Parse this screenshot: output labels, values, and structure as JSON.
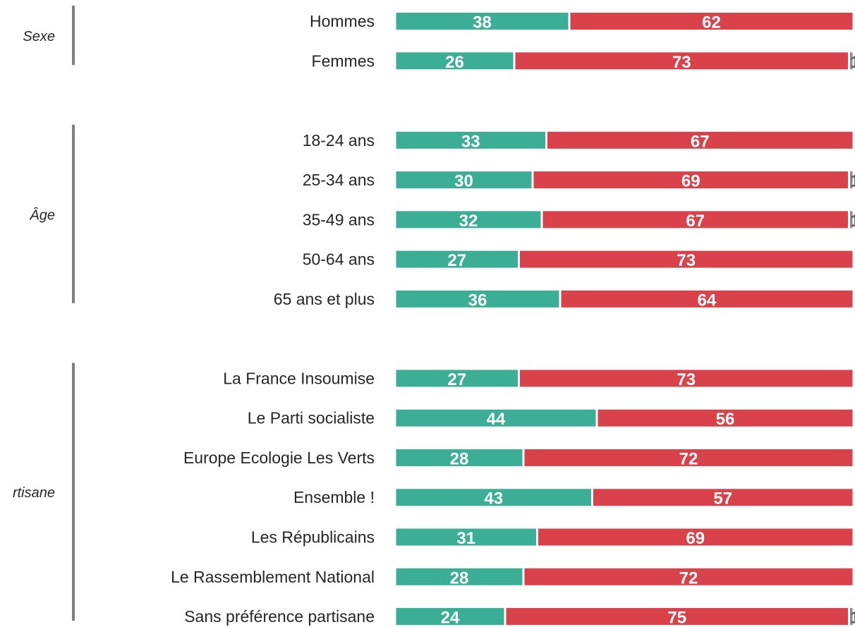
{
  "chart_data": {
    "type": "stacked-bar-horizontal",
    "groups": [
      {
        "label": "Sexe",
        "categories": [
          "Hommes",
          "Femmes"
        ]
      },
      {
        "label": "Âge",
        "categories": [
          "18-24 ans",
          "25-34 ans",
          "35-49 ans",
          "50-64 ans",
          "65 ans et plus"
        ]
      },
      {
        "label": "rtisane",
        "categories": [
          "La France Insoumise",
          "Le Parti socialiste",
          "Europe Ecologie Les Verts",
          "Ensemble !",
          "Les Républicains",
          "Le Rassemblement National",
          "Sans préférence partisane"
        ]
      }
    ],
    "xlim": [
      0,
      100
    ],
    "series": [
      {
        "color": "#3dae96",
        "values": [
          38,
          26,
          33,
          30,
          32,
          27,
          36,
          27,
          44,
          28,
          43,
          31,
          28,
          24
        ]
      },
      {
        "color": "#d9424b",
        "values": [
          62,
          73,
          67,
          69,
          67,
          73,
          64,
          73,
          56,
          72,
          57,
          69,
          72,
          75
        ]
      },
      {
        "color": "#8c8c8c",
        "values": [
          0,
          1,
          0,
          1,
          1,
          0,
          0,
          0,
          0,
          0,
          0,
          0,
          0,
          1
        ]
      }
    ]
  }
}
